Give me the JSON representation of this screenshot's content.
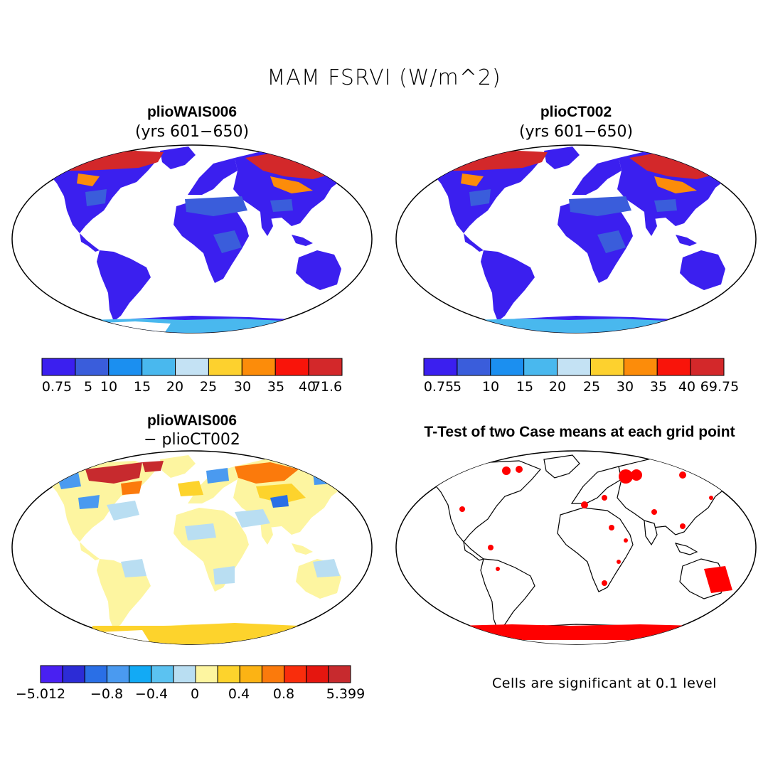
{
  "figure_title": "MAM FSRVI (W/m^2)",
  "panels": {
    "top_left": {
      "title": "plioWAIS006",
      "subtitle": "(yrs 601−650)"
    },
    "top_right": {
      "title": "plioCT002",
      "subtitle": "(yrs 601−650)"
    },
    "bottom_left": {
      "title": "plioWAIS006",
      "subtitle": "− plioCT002"
    },
    "bottom_right": {
      "title": "T-Test of two Case means at each grid point",
      "note": "Cells are significant at 0.1 level"
    }
  },
  "colorbars": {
    "top_left": {
      "colors": [
        "#3b1fef",
        "#3a5ddb",
        "#1b8ff0",
        "#49b8ee",
        "#c4e2f4",
        "#fdd12e",
        "#fc8c0a",
        "#f9140a",
        "#d3282a"
      ],
      "labels": [
        "0.75",
        "5",
        "10",
        "15",
        "20",
        "25",
        "30",
        "35",
        "40",
        "71.6"
      ]
    },
    "top_right": {
      "colors": [
        "#3b1fef",
        "#3a5ddb",
        "#1b8ff0",
        "#49b8ee",
        "#c4e2f4",
        "#fdd12e",
        "#fc8c0a",
        "#f9140a",
        "#d3282a"
      ],
      "labels": [
        "0.75",
        "5",
        "10",
        "15",
        "20",
        "25",
        "30",
        "35",
        "40",
        "69.75"
      ]
    },
    "bottom_left": {
      "colors": [
        "#4920f2",
        "#2c2cd6",
        "#2a6fe6",
        "#4a9af0",
        "#12aaf5",
        "#5bc2f1",
        "#b9def2",
        "#fdf5a0",
        "#fdd32c",
        "#fcb314",
        "#fb7a0c",
        "#f92d0c",
        "#e5160f",
        "#c72a2e"
      ],
      "labels": [
        "−5.012",
        "−0.8",
        "−0.4",
        "0",
        "0.4",
        "0.8",
        "5.399"
      ]
    }
  },
  "legend_colors": {
    "coastline": "#000000",
    "significant": "#ff0000"
  }
}
